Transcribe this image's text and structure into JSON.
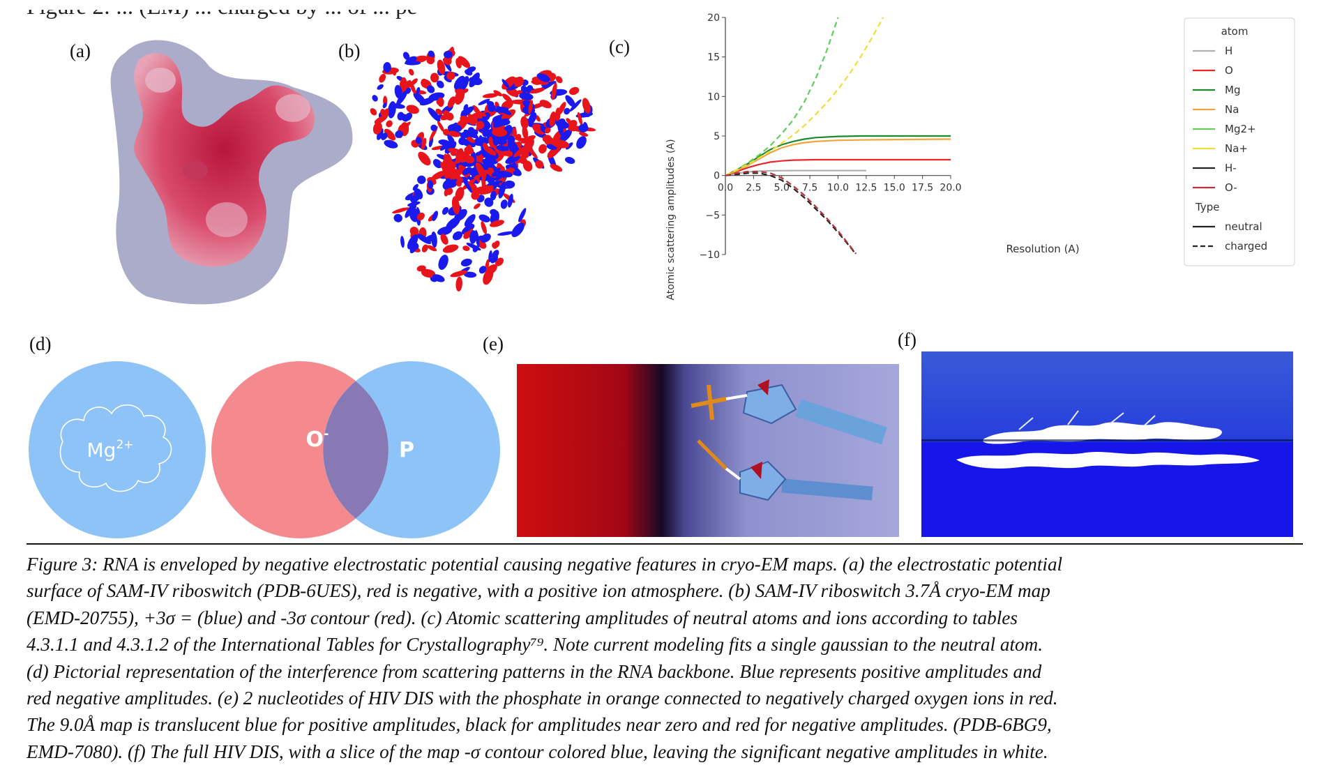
{
  "header": {
    "partial_text": "Figure 2: ... (EM) ... charged by ... of ... pe"
  },
  "panels": {
    "a": {
      "label": "(a)"
    },
    "b": {
      "label": "(b)"
    },
    "c": {
      "label": "(c)"
    },
    "d": {
      "label": "(d)",
      "circle_left_label": "Mg",
      "circle_left_sup": "2+",
      "overlap_label": "O",
      "overlap_sup": "-",
      "right_label": "P",
      "colors": {
        "blue": "#8ec3f7",
        "red": "#f58a8e",
        "overlap": "#8879b4"
      }
    },
    "e": {
      "label": "(e)"
    },
    "f": {
      "label": "(f)"
    }
  },
  "chart_data": {
    "type": "line",
    "xlabel": "Resolution (A)",
    "ylabel": "Atomic scattering amplitudes (A)",
    "xlim": [
      0,
      20
    ],
    "ylim": [
      -10,
      20
    ],
    "x_ticks": [
      "0.0",
      "2.5",
      "5.0",
      "7.5",
      "10.0",
      "12.5",
      "15.0",
      "17.5",
      "20.0"
    ],
    "y_ticks": [
      "−10",
      "−5",
      "0",
      "5",
      "10",
      "15",
      "20"
    ],
    "legend_position": "top-right",
    "legend_title": "atom",
    "legend_type_title": "Type",
    "legend_types": [
      {
        "name": "neutral",
        "style": "solid"
      },
      {
        "name": "charged",
        "style": "dashed"
      }
    ],
    "series": [
      {
        "name": "H",
        "color": "#b0b0b0",
        "style": "solid",
        "x": [
          0,
          1,
          2,
          3,
          4,
          6,
          8,
          10,
          12.5
        ],
        "y": [
          0,
          0.25,
          0.45,
          0.55,
          0.6,
          0.62,
          0.62,
          0.62,
          0.62
        ]
      },
      {
        "name": "O",
        "color": "#e8262c",
        "style": "solid",
        "x": [
          0,
          1,
          2,
          3,
          4,
          5,
          6,
          8,
          10,
          15,
          20
        ],
        "y": [
          0,
          0.5,
          1.0,
          1.4,
          1.7,
          1.85,
          1.95,
          2.0,
          2.0,
          2.0,
          2.0
        ]
      },
      {
        "name": "Mg",
        "color": "#1a8a2a",
        "style": "solid",
        "x": [
          0,
          1,
          2,
          3,
          4,
          5,
          6,
          7,
          8,
          10,
          12,
          15,
          20
        ],
        "y": [
          0,
          0.7,
          1.5,
          2.4,
          3.3,
          3.9,
          4.3,
          4.6,
          4.8,
          4.95,
          5.0,
          5.0,
          5.0
        ]
      },
      {
        "name": "Na",
        "color": "#f0a53a",
        "style": "solid",
        "x": [
          0,
          1,
          2,
          3,
          4,
          5,
          6,
          7,
          8,
          10,
          12,
          15,
          20
        ],
        "y": [
          0,
          0.6,
          1.3,
          2.1,
          2.9,
          3.5,
          3.9,
          4.15,
          4.3,
          4.45,
          4.5,
          4.55,
          4.6
        ]
      },
      {
        "name": "Mg2+",
        "color": "#5fcf5a",
        "style": "dashed",
        "x": [
          0,
          1,
          2,
          3,
          4,
          5,
          6,
          7,
          8,
          9,
          10
        ],
        "y": [
          0,
          0.7,
          1.6,
          2.6,
          3.8,
          5.3,
          7.0,
          9.3,
          12.2,
          15.8,
          20.0
        ]
      },
      {
        "name": "Na+",
        "color": "#f2dc3a",
        "style": "dashed",
        "x": [
          0,
          2,
          4,
          5,
          6,
          7,
          8,
          9,
          10,
          11,
          12,
          13,
          14
        ],
        "y": [
          0,
          1.4,
          3.1,
          4.1,
          5.1,
          6.3,
          7.7,
          9.2,
          10.9,
          12.8,
          15.0,
          17.4,
          20.0
        ]
      },
      {
        "name": "H-",
        "color": "#222222",
        "style": "dashed",
        "x": [
          0,
          1,
          2,
          3,
          4,
          5,
          6,
          7,
          8,
          9,
          10,
          11,
          11.5
        ],
        "y": [
          0,
          0.15,
          0.3,
          0.3,
          0.0,
          -0.6,
          -1.6,
          -2.8,
          -4.2,
          -5.6,
          -7.2,
          -8.9,
          -9.8
        ]
      },
      {
        "name": "O-",
        "color": "#b5323a",
        "style": "dashed",
        "x": [
          0,
          1,
          2,
          3,
          4,
          5,
          6,
          7,
          8,
          9,
          10,
          11,
          11.6
        ],
        "y": [
          0,
          0.3,
          0.5,
          0.5,
          0.3,
          -0.3,
          -1.3,
          -2.5,
          -3.9,
          -5.4,
          -7.0,
          -8.8,
          -9.9
        ]
      }
    ]
  },
  "caption_lines": [
    "Figure 3: RNA is enveloped by negative electrostatic potential causing negative features in cryo-EM maps. (a) the electrostatic potential",
    "surface of SAM-IV riboswitch (PDB-6UES), red is negative, with a positive ion atmosphere. (b) SAM-IV riboswitch 3.7Å cryo-EM map",
    "(EMD-20755), +3σ = (blue) and -3σ contour (red). (c) Atomic scattering amplitudes of neutral atoms and ions according to tables",
    "4.3.1.1 and 4.3.1.2 of the International Tables for Crystallography⁷⁹. Note current modeling fits a single gaussian to the neutral atom.",
    "(d) Pictorial representation of the interference from scattering patterns in the RNA backbone. Blue represents positive amplitudes and",
    "red negative amplitudes. (e) 2 nucleotides of HIV DIS with the phosphate in orange connected to negatively charged oxygen ions in red.",
    "The 9.0Å map is translucent blue for positive amplitudes, black for amplitudes near zero and red for negative amplitudes. (PDB-6BG9,",
    "EMD-7080). (f) The full HIV DIS, with a slice of the map -σ contour colored blue, leaving the significant negative amplitudes in white."
  ]
}
